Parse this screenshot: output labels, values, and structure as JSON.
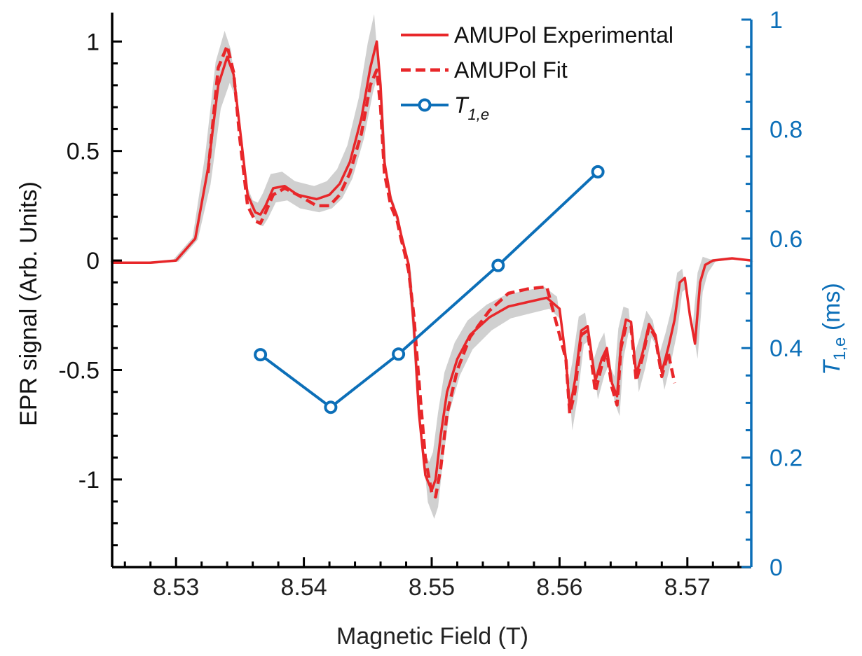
{
  "chart_data": {
    "type": "line",
    "xlabel": "Magnetic Field (T)",
    "ylabel_left": "EPR signal (Arb. Units)",
    "ylabel_right": {
      "main": "T",
      "sub": "1,e",
      "unit": " (ms)"
    },
    "xlim": [
      8.525,
      8.575
    ],
    "ylim_left": [
      -1.4,
      1.1
    ],
    "ylim_right": [
      0,
      1
    ],
    "x_ticks": [
      8.53,
      8.54,
      8.55,
      8.56,
      8.57
    ],
    "x_tick_labels": [
      "8.53",
      "8.54",
      "8.55",
      "8.56",
      "8.57"
    ],
    "y_left_ticks": [
      1,
      0.5,
      0,
      -0.5,
      -1
    ],
    "y_left_tick_labels": [
      "1",
      "0.5",
      "0",
      "-0.5",
      "-1"
    ],
    "y_right_ticks": [
      1,
      0.8,
      0.6,
      0.4,
      0.2,
      0
    ],
    "y_right_tick_labels": [
      "1",
      "0.8",
      "0.6",
      "0.4",
      "0.2",
      "0"
    ],
    "grid": false,
    "legend": {
      "position": "top-right",
      "entries": [
        {
          "label": "AMUPol Experimental",
          "style": "solid",
          "color": "#e8272a"
        },
        {
          "label": "AMUPol Fit",
          "style": "dashed",
          "color": "#e8272a"
        },
        {
          "label": "T",
          "sub": "1,e",
          "style": "line-circle",
          "color": "#0c6fb8"
        }
      ]
    },
    "colors": {
      "experimental": "#e8272a",
      "fit": "#e8272a",
      "t1e": "#0c6fb8",
      "band": "#c8c8c8",
      "axis": "#000000",
      "right_axis": "#0c6fb8"
    },
    "series": [
      {
        "name": "AMUPol Experimental",
        "axis": "left",
        "style": "solid",
        "x": [
          8.525,
          8.528,
          8.53,
          8.5315,
          8.5325,
          8.5333,
          8.534,
          8.5345,
          8.535,
          8.5356,
          8.5362,
          8.5366,
          8.537,
          8.5376,
          8.5385,
          8.5395,
          8.541,
          8.542,
          8.5428,
          8.5436,
          8.5445,
          8.5452,
          8.5457,
          8.546,
          8.5463,
          8.5468,
          8.5473,
          8.5476,
          8.5479,
          8.5482,
          8.5486,
          8.549,
          8.5495,
          8.55,
          8.5503,
          8.5507,
          8.5512,
          8.552,
          8.553,
          8.5545,
          8.556,
          8.5575,
          8.559,
          8.56,
          8.5605,
          8.5608,
          8.5612,
          8.5617,
          8.5622,
          8.5628,
          8.5633,
          8.5637,
          8.5641,
          8.5645,
          8.5648,
          8.5652,
          8.5656,
          8.566,
          8.5665,
          8.567,
          8.5675,
          8.568,
          8.5685,
          8.569,
          8.5694,
          8.5698,
          8.5702,
          8.5706,
          8.571,
          8.5714,
          8.572,
          8.5735,
          8.575
        ],
        "y": [
          -0.01,
          -0.01,
          0.0,
          0.1,
          0.42,
          0.8,
          0.93,
          0.85,
          0.6,
          0.3,
          0.22,
          0.21,
          0.25,
          0.33,
          0.34,
          0.3,
          0.28,
          0.3,
          0.35,
          0.45,
          0.65,
          0.88,
          1.0,
          0.8,
          0.45,
          0.28,
          0.2,
          0.12,
          0.05,
          -0.02,
          -0.3,
          -0.7,
          -0.98,
          -1.05,
          -1.0,
          -0.8,
          -0.6,
          -0.45,
          -0.34,
          -0.26,
          -0.21,
          -0.19,
          -0.17,
          -0.22,
          -0.45,
          -0.68,
          -0.55,
          -0.32,
          -0.3,
          -0.55,
          -0.45,
          -0.4,
          -0.56,
          -0.62,
          -0.38,
          -0.27,
          -0.28,
          -0.52,
          -0.42,
          -0.29,
          -0.34,
          -0.51,
          -0.4,
          -0.27,
          -0.1,
          -0.08,
          -0.25,
          -0.38,
          -0.1,
          -0.02,
          0.0,
          0.01,
          0.0
        ]
      },
      {
        "name": "AMUPol Fit",
        "axis": "left",
        "style": "dashed",
        "x": [
          8.5325,
          8.5333,
          8.534,
          8.5345,
          8.535,
          8.5356,
          8.5362,
          8.5366,
          8.537,
          8.5376,
          8.5385,
          8.5395,
          8.541,
          8.542,
          8.5428,
          8.5436,
          8.5445,
          8.5452,
          8.5457,
          8.546,
          8.5463,
          8.5468,
          8.5473,
          8.5476,
          8.5479,
          8.5482,
          8.5486,
          8.549,
          8.5495,
          8.55,
          8.5503,
          8.5507,
          8.5512,
          8.552,
          8.553,
          8.5545,
          8.556,
          8.5575,
          8.559,
          8.5605,
          8.5608,
          8.5612,
          8.5617,
          8.5622,
          8.5628,
          8.5633,
          8.5637,
          8.5641,
          8.5645,
          8.5648,
          8.5652,
          8.5656,
          8.566,
          8.5665,
          8.567,
          8.5675,
          8.568,
          8.5685,
          8.569
        ],
        "y": [
          0.4,
          0.88,
          0.98,
          0.86,
          0.55,
          0.25,
          0.18,
          0.17,
          0.22,
          0.3,
          0.33,
          0.3,
          0.25,
          0.25,
          0.3,
          0.4,
          0.58,
          0.8,
          0.87,
          0.7,
          0.4,
          0.25,
          0.18,
          0.1,
          0.03,
          -0.05,
          -0.25,
          -0.55,
          -0.9,
          -1.06,
          -1.08,
          -0.95,
          -0.7,
          -0.5,
          -0.35,
          -0.23,
          -0.15,
          -0.13,
          -0.12,
          -0.45,
          -0.7,
          -0.6,
          -0.34,
          -0.32,
          -0.6,
          -0.48,
          -0.42,
          -0.58,
          -0.66,
          -0.4,
          -0.3,
          -0.3,
          -0.55,
          -0.44,
          -0.3,
          -0.35,
          -0.53,
          -0.42,
          -0.56
        ]
      },
      {
        "name": "T1,e",
        "axis": "right",
        "style": "line-circle",
        "x": [
          8.5366,
          8.5421,
          8.5474,
          8.5552,
          8.563
        ],
        "y": [
          0.388,
          0.292,
          0.389,
          0.551,
          0.722
        ]
      }
    ]
  }
}
